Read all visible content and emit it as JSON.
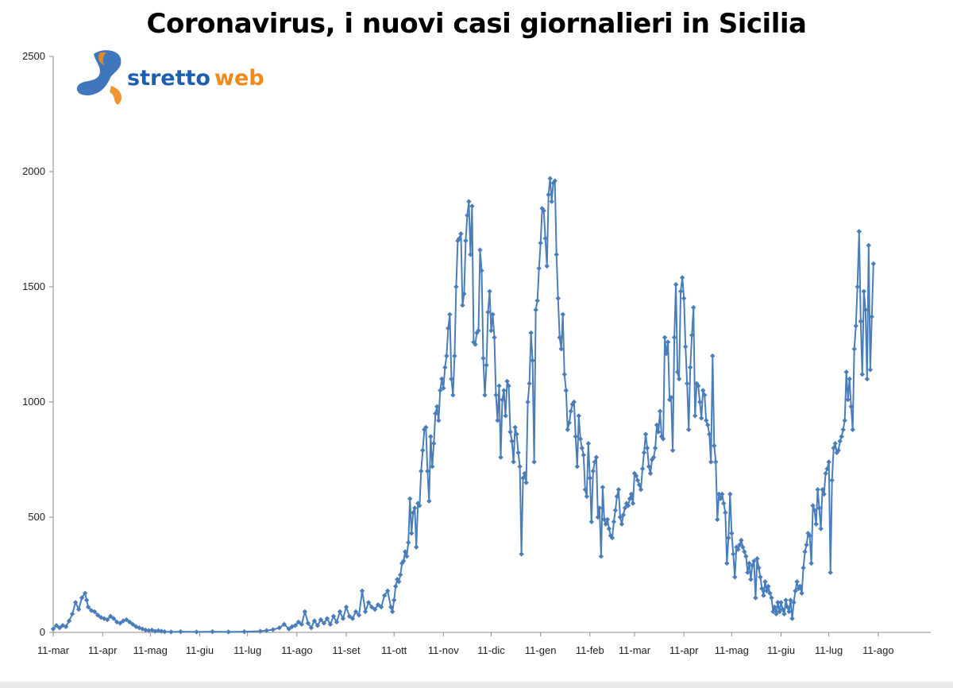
{
  "chart_data": {
    "type": "line",
    "title": "Coronavirus, i nuovi casi giornalieri in Sicilia",
    "watermark": {
      "text_a": "stretto",
      "text_b": "web"
    },
    "xlabel": "",
    "ylabel": "",
    "ylim": [
      0,
      2500
    ],
    "yticks": [
      0,
      500,
      1000,
      1500,
      2000,
      2500
    ],
    "xlim": [
      0,
      551
    ],
    "xticks": [
      {
        "label": "11-mar",
        "day": 0
      },
      {
        "label": "11-apr",
        "day": 31
      },
      {
        "label": "11-mag",
        "day": 61
      },
      {
        "label": "11-giu",
        "day": 92
      },
      {
        "label": "11-lug",
        "day": 122
      },
      {
        "label": "11-ago",
        "day": 153
      },
      {
        "label": "11-set",
        "day": 184
      },
      {
        "label": "11-ott",
        "day": 214
      },
      {
        "label": "11-nov",
        "day": 245
      },
      {
        "label": "11-dic",
        "day": 275
      },
      {
        "label": "11-gen",
        "day": 306
      },
      {
        "label": "11-feb",
        "day": 337
      },
      {
        "label": "11-mar",
        "day": 365
      },
      {
        "label": "11-apr",
        "day": 396
      },
      {
        "label": "11-mag",
        "day": 426
      },
      {
        "label": "11-giu",
        "day": 457
      },
      {
        "label": "11-lug",
        "day": 487
      },
      {
        "label": "11-ago",
        "day": 518
      }
    ],
    "grid": false,
    "series_color": "#4a7ebb",
    "marker": "diamond",
    "points": [
      [
        0,
        15
      ],
      [
        2,
        30
      ],
      [
        4,
        20
      ],
      [
        6,
        30
      ],
      [
        8,
        25
      ],
      [
        10,
        50
      ],
      [
        12,
        80
      ],
      [
        14,
        130
      ],
      [
        16,
        100
      ],
      [
        18,
        150
      ],
      [
        20,
        170
      ],
      [
        21,
        140
      ],
      [
        22,
        110
      ],
      [
        24,
        95
      ],
      [
        26,
        90
      ],
      [
        28,
        75
      ],
      [
        30,
        65
      ],
      [
        32,
        60
      ],
      [
        34,
        55
      ],
      [
        36,
        70
      ],
      [
        38,
        60
      ],
      [
        40,
        45
      ],
      [
        42,
        40
      ],
      [
        44,
        50
      ],
      [
        46,
        55
      ],
      [
        48,
        45
      ],
      [
        50,
        35
      ],
      [
        52,
        25
      ],
      [
        54,
        20
      ],
      [
        56,
        15
      ],
      [
        58,
        10
      ],
      [
        60,
        8
      ],
      [
        62,
        10
      ],
      [
        64,
        5
      ],
      [
        66,
        8
      ],
      [
        68,
        5
      ],
      [
        70,
        3
      ],
      [
        74,
        2
      ],
      [
        80,
        3
      ],
      [
        90,
        2
      ],
      [
        100,
        3
      ],
      [
        110,
        2
      ],
      [
        120,
        3
      ],
      [
        130,
        5
      ],
      [
        134,
        8
      ],
      [
        138,
        12
      ],
      [
        142,
        20
      ],
      [
        145,
        35
      ],
      [
        148,
        15
      ],
      [
        150,
        25
      ],
      [
        152,
        30
      ],
      [
        154,
        45
      ],
      [
        156,
        35
      ],
      [
        158,
        90
      ],
      [
        160,
        40
      ],
      [
        162,
        20
      ],
      [
        164,
        50
      ],
      [
        166,
        30
      ],
      [
        168,
        55
      ],
      [
        170,
        40
      ],
      [
        172,
        60
      ],
      [
        174,
        35
      ],
      [
        176,
        70
      ],
      [
        178,
        45
      ],
      [
        180,
        90
      ],
      [
        182,
        60
      ],
      [
        184,
        110
      ],
      [
        186,
        70
      ],
      [
        188,
        60
      ],
      [
        190,
        90
      ],
      [
        192,
        75
      ],
      [
        194,
        180
      ],
      [
        196,
        90
      ],
      [
        198,
        130
      ],
      [
        200,
        110
      ],
      [
        202,
        100
      ],
      [
        204,
        120
      ],
      [
        206,
        110
      ],
      [
        208,
        160
      ],
      [
        210,
        180
      ],
      [
        212,
        110
      ],
      [
        213,
        90
      ],
      [
        214,
        140
      ],
      [
        215,
        200
      ],
      [
        216,
        230
      ],
      [
        217,
        220
      ],
      [
        218,
        250
      ],
      [
        219,
        300
      ],
      [
        220,
        310
      ],
      [
        221,
        350
      ],
      [
        222,
        330
      ],
      [
        223,
        390
      ],
      [
        224,
        580
      ],
      [
        225,
        430
      ],
      [
        226,
        520
      ],
      [
        227,
        540
      ],
      [
        228,
        370
      ],
      [
        229,
        560
      ],
      [
        230,
        550
      ],
      [
        231,
        700
      ],
      [
        232,
        790
      ],
      [
        233,
        880
      ],
      [
        234,
        890
      ],
      [
        235,
        700
      ],
      [
        236,
        570
      ],
      [
        237,
        850
      ],
      [
        238,
        720
      ],
      [
        239,
        820
      ],
      [
        240,
        950
      ],
      [
        241,
        980
      ],
      [
        242,
        920
      ],
      [
        243,
        1050
      ],
      [
        244,
        1100
      ],
      [
        245,
        1060
      ],
      [
        246,
        1150
      ],
      [
        247,
        1200
      ],
      [
        248,
        1320
      ],
      [
        249,
        1380
      ],
      [
        250,
        1100
      ],
      [
        251,
        1030
      ],
      [
        252,
        1200
      ],
      [
        253,
        1500
      ],
      [
        254,
        1700
      ],
      [
        255,
        1710
      ],
      [
        256,
        1730
      ],
      [
        257,
        1420
      ],
      [
        258,
        1470
      ],
      [
        259,
        1700
      ],
      [
        260,
        1810
      ],
      [
        261,
        1870
      ],
      [
        262,
        1640
      ],
      [
        263,
        1850
      ],
      [
        264,
        1260
      ],
      [
        265,
        1250
      ],
      [
        266,
        1300
      ],
      [
        267,
        1310
      ],
      [
        268,
        1660
      ],
      [
        269,
        1570
      ],
      [
        270,
        1190
      ],
      [
        271,
        1030
      ],
      [
        272,
        1160
      ],
      [
        273,
        1390
      ],
      [
        274,
        1480
      ],
      [
        275,
        1310
      ],
      [
        276,
        1380
      ],
      [
        277,
        1280
      ],
      [
        278,
        1030
      ],
      [
        279,
        920
      ],
      [
        280,
        1070
      ],
      [
        281,
        760
      ],
      [
        282,
        1010
      ],
      [
        283,
        1050
      ],
      [
        284,
        940
      ],
      [
        285,
        1090
      ],
      [
        286,
        1070
      ],
      [
        287,
        870
      ],
      [
        288,
        830
      ],
      [
        289,
        740
      ],
      [
        290,
        890
      ],
      [
        291,
        860
      ],
      [
        292,
        780
      ],
      [
        293,
        720
      ],
      [
        294,
        340
      ],
      [
        295,
        670
      ],
      [
        296,
        690
      ],
      [
        297,
        650
      ],
      [
        298,
        1000
      ],
      [
        299,
        1080
      ],
      [
        300,
        1300
      ],
      [
        301,
        1180
      ],
      [
        302,
        740
      ],
      [
        303,
        1400
      ],
      [
        304,
        1440
      ],
      [
        305,
        1580
      ],
      [
        306,
        1690
      ],
      [
        307,
        1840
      ],
      [
        308,
        1830
      ],
      [
        309,
        1710
      ],
      [
        310,
        1590
      ],
      [
        311,
        1900
      ],
      [
        312,
        1970
      ],
      [
        313,
        1870
      ],
      [
        314,
        1950
      ],
      [
        315,
        1960
      ],
      [
        316,
        1640
      ],
      [
        317,
        1450
      ],
      [
        318,
        1280
      ],
      [
        319,
        1230
      ],
      [
        320,
        1380
      ],
      [
        321,
        1120
      ],
      [
        322,
        1050
      ],
      [
        323,
        880
      ],
      [
        324,
        910
      ],
      [
        325,
        960
      ],
      [
        326,
        990
      ],
      [
        327,
        1000
      ],
      [
        328,
        850
      ],
      [
        329,
        720
      ],
      [
        330,
        940
      ],
      [
        331,
        840
      ],
      [
        332,
        800
      ],
      [
        333,
        770
      ],
      [
        334,
        620
      ],
      [
        335,
        590
      ],
      [
        336,
        820
      ],
      [
        337,
        670
      ],
      [
        338,
        480
      ],
      [
        339,
        700
      ],
      [
        340,
        740
      ],
      [
        341,
        760
      ],
      [
        342,
        500
      ],
      [
        343,
        540
      ],
      [
        344,
        330
      ],
      [
        345,
        630
      ],
      [
        346,
        490
      ],
      [
        347,
        470
      ],
      [
        348,
        490
      ],
      [
        349,
        450
      ],
      [
        350,
        420
      ],
      [
        351,
        410
      ],
      [
        352,
        480
      ],
      [
        353,
        530
      ],
      [
        354,
        590
      ],
      [
        355,
        620
      ],
      [
        356,
        500
      ],
      [
        357,
        470
      ],
      [
        358,
        510
      ],
      [
        359,
        540
      ],
      [
        360,
        560
      ],
      [
        361,
        550
      ],
      [
        362,
        580
      ],
      [
        363,
        600
      ],
      [
        364,
        560
      ],
      [
        365,
        690
      ],
      [
        366,
        680
      ],
      [
        367,
        660
      ],
      [
        368,
        640
      ],
      [
        369,
        620
      ],
      [
        370,
        710
      ],
      [
        371,
        780
      ],
      [
        372,
        860
      ],
      [
        373,
        800
      ],
      [
        374,
        720
      ],
      [
        375,
        690
      ],
      [
        376,
        750
      ],
      [
        377,
        760
      ],
      [
        378,
        800
      ],
      [
        379,
        900
      ],
      [
        380,
        870
      ],
      [
        381,
        960
      ],
      [
        382,
        850
      ],
      [
        383,
        840
      ],
      [
        384,
        1280
      ],
      [
        385,
        1210
      ],
      [
        386,
        1260
      ],
      [
        387,
        1010
      ],
      [
        388,
        1020
      ],
      [
        389,
        790
      ],
      [
        390,
        1280
      ],
      [
        391,
        1510
      ],
      [
        392,
        1130
      ],
      [
        393,
        1100
      ],
      [
        394,
        1480
      ],
      [
        395,
        1540
      ],
      [
        396,
        1450
      ],
      [
        397,
        1240
      ],
      [
        398,
        1080
      ],
      [
        399,
        880
      ],
      [
        400,
        1150
      ],
      [
        401,
        1290
      ],
      [
        402,
        1410
      ],
      [
        403,
        940
      ],
      [
        404,
        1080
      ],
      [
        405,
        1070
      ],
      [
        406,
        1000
      ],
      [
        407,
        930
      ],
      [
        408,
        1050
      ],
      [
        409,
        1030
      ],
      [
        410,
        920
      ],
      [
        411,
        900
      ],
      [
        412,
        860
      ],
      [
        413,
        740
      ],
      [
        414,
        1200
      ],
      [
        415,
        810
      ],
      [
        416,
        740
      ],
      [
        417,
        490
      ],
      [
        418,
        600
      ],
      [
        419,
        580
      ],
      [
        420,
        600
      ],
      [
        421,
        560
      ],
      [
        422,
        520
      ],
      [
        423,
        300
      ],
      [
        424,
        410
      ],
      [
        425,
        600
      ],
      [
        426,
        430
      ],
      [
        427,
        340
      ],
      [
        428,
        240
      ],
      [
        429,
        370
      ],
      [
        430,
        360
      ],
      [
        431,
        380
      ],
      [
        432,
        400
      ],
      [
        433,
        370
      ],
      [
        434,
        350
      ],
      [
        435,
        330
      ],
      [
        436,
        260
      ],
      [
        437,
        300
      ],
      [
        438,
        230
      ],
      [
        439,
        290
      ],
      [
        440,
        310
      ],
      [
        441,
        150
      ],
      [
        442,
        320
      ],
      [
        443,
        280
      ],
      [
        444,
        240
      ],
      [
        445,
        190
      ],
      [
        446,
        160
      ],
      [
        447,
        220
      ],
      [
        448,
        180
      ],
      [
        449,
        200
      ],
      [
        450,
        170
      ],
      [
        451,
        150
      ],
      [
        452,
        90
      ],
      [
        453,
        110
      ],
      [
        454,
        80
      ],
      [
        455,
        130
      ],
      [
        456,
        90
      ],
      [
        457,
        130
      ],
      [
        458,
        100
      ],
      [
        459,
        80
      ],
      [
        460,
        140
      ],
      [
        461,
        110
      ],
      [
        462,
        90
      ],
      [
        463,
        140
      ],
      [
        464,
        60
      ],
      [
        465,
        130
      ],
      [
        466,
        180
      ],
      [
        467,
        220
      ],
      [
        468,
        190
      ],
      [
        469,
        200
      ],
      [
        470,
        170
      ],
      [
        471,
        280
      ],
      [
        472,
        350
      ],
      [
        473,
        380
      ],
      [
        474,
        430
      ],
      [
        475,
        420
      ],
      [
        476,
        300
      ],
      [
        477,
        550
      ],
      [
        478,
        530
      ],
      [
        479,
        470
      ],
      [
        480,
        620
      ],
      [
        481,
        540
      ],
      [
        482,
        450
      ],
      [
        483,
        620
      ],
      [
        484,
        600
      ],
      [
        485,
        690
      ],
      [
        486,
        710
      ],
      [
        487,
        740
      ],
      [
        488,
        260
      ],
      [
        489,
        660
      ],
      [
        490,
        800
      ],
      [
        491,
        820
      ],
      [
        492,
        780
      ],
      [
        493,
        790
      ],
      [
        494,
        830
      ],
      [
        495,
        850
      ],
      [
        496,
        880
      ],
      [
        497,
        920
      ],
      [
        498,
        1130
      ],
      [
        499,
        1010
      ],
      [
        500,
        1100
      ],
      [
        501,
        980
      ],
      [
        502,
        880
      ],
      [
        503,
        1230
      ],
      [
        504,
        1330
      ],
      [
        505,
        1500
      ],
      [
        506,
        1740
      ],
      [
        507,
        1350
      ],
      [
        508,
        1120
      ],
      [
        509,
        1480
      ],
      [
        510,
        1400
      ],
      [
        511,
        1100
      ],
      [
        512,
        1680
      ],
      [
        513,
        1140
      ],
      [
        514,
        1370
      ],
      [
        515,
        1600
      ]
    ]
  }
}
